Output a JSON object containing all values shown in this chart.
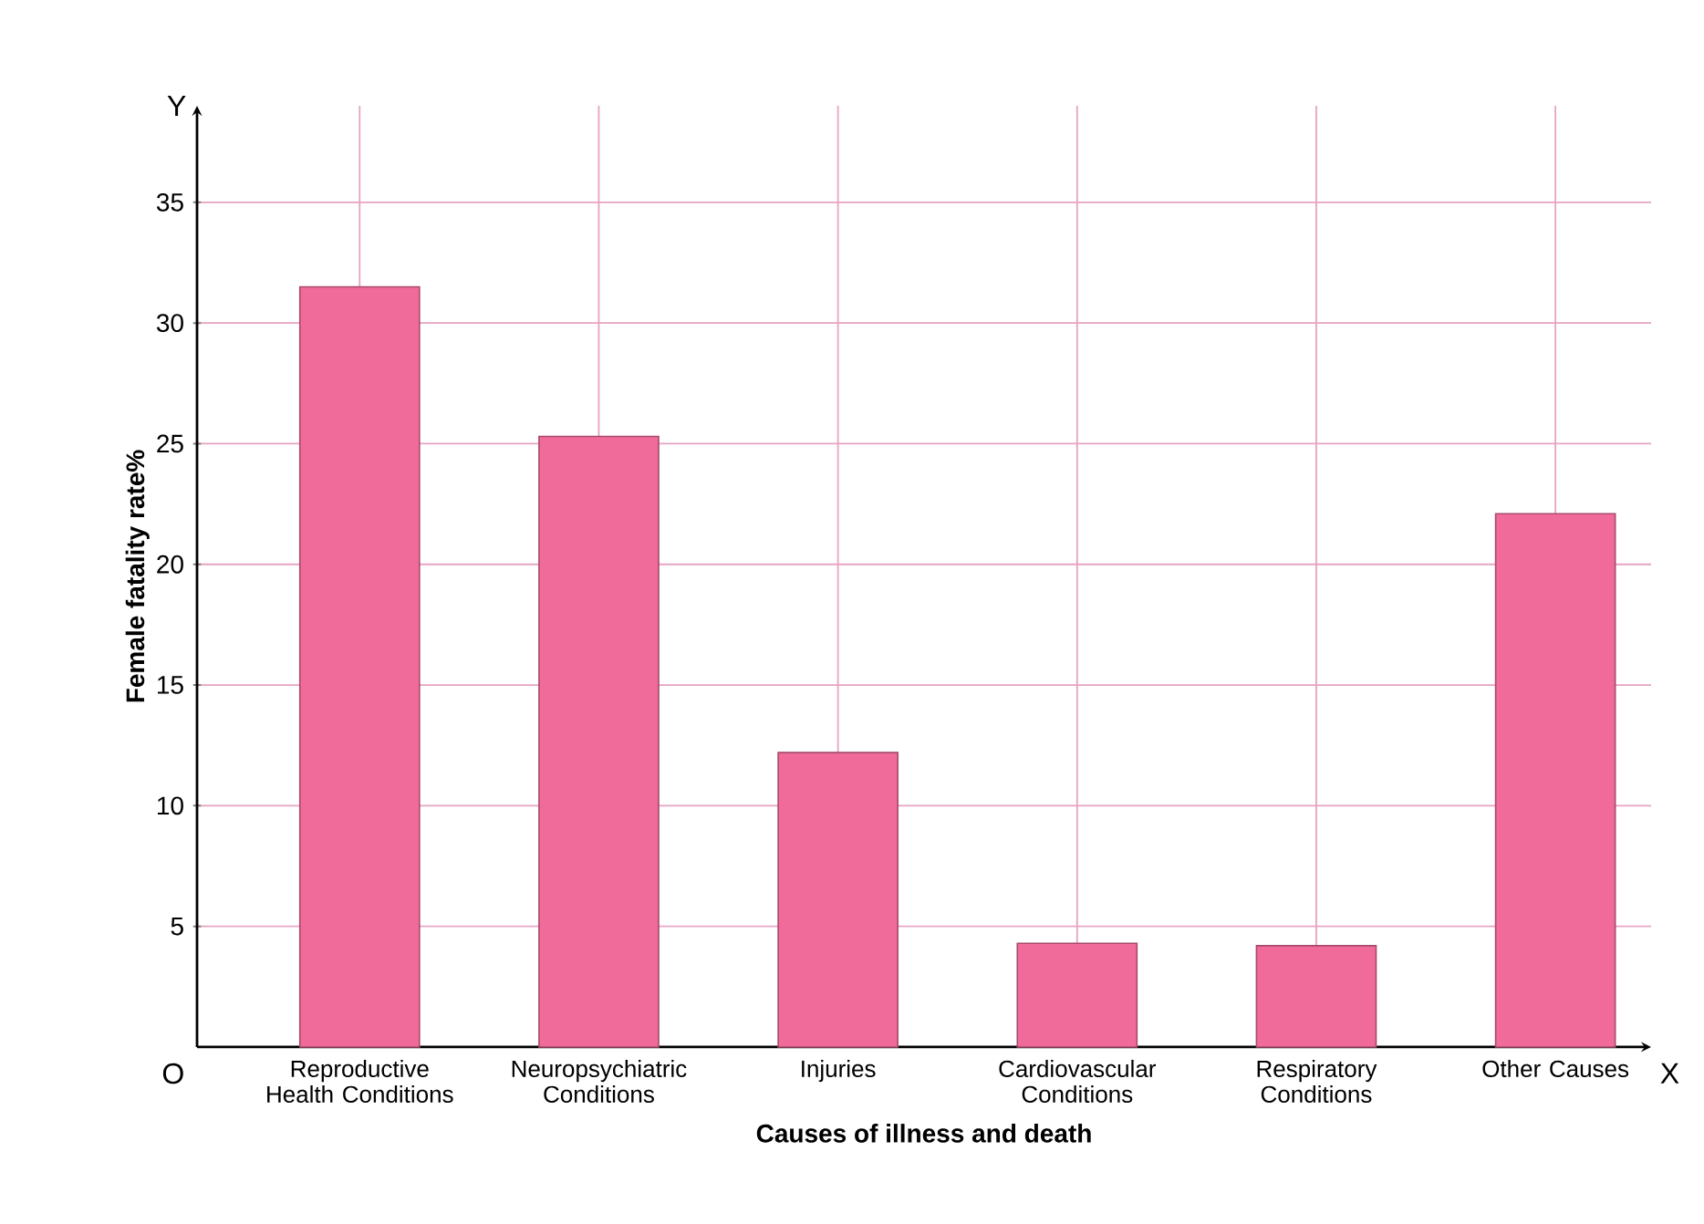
{
  "chart_data": {
    "type": "bar",
    "xlabel": "Causes of illness and death",
    "ylabel": "Female fatality rate%",
    "categories": [
      "Reproductive Health Conditions",
      "Neuropsychiatric Conditions",
      "Injuries",
      "Cardiovascular Conditions",
      "Respiratory Conditions",
      "Other Causes"
    ],
    "values": [
      31.5,
      25.3,
      12.2,
      4.3,
      4.2,
      22.1
    ],
    "color": "#f06a9a",
    "ylim": [
      0,
      39
    ],
    "yticks": [
      5,
      10,
      15,
      20,
      25,
      30,
      35
    ],
    "grid": true,
    "annotations": [
      "O",
      "X",
      "Y"
    ]
  }
}
